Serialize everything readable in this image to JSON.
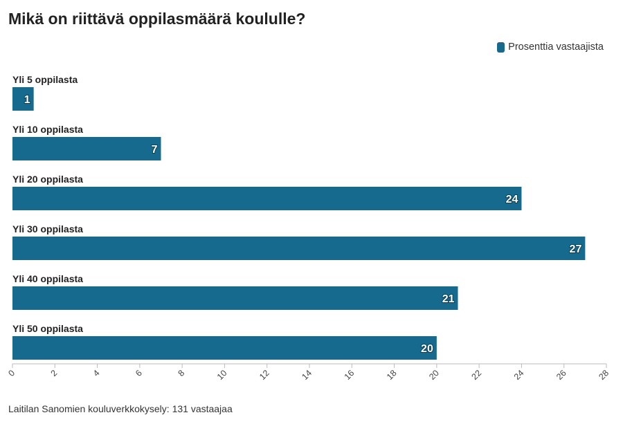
{
  "title": "Mikä on riittävä oppilasmäärä koululle?",
  "source": "Laitilan Sanomien kouluverkkokysely: 131 vastaajaa",
  "colors": {
    "bar": "#156a8e",
    "axis": "#bbbbbb",
    "text": "#222222"
  },
  "chart_data": {
    "type": "bar",
    "orientation": "horizontal",
    "categories": [
      "Yli 5 oppilasta",
      "Yli 10 oppilasta",
      "Yli 20 oppilasta",
      "Yli 30 oppilasta",
      "Yli 40 oppilasta",
      "Yli 50 oppilasta"
    ],
    "series": [
      {
        "name": "Prosenttia vastaajista",
        "values": [
          1,
          7,
          24,
          27,
          21,
          20
        ]
      }
    ],
    "xlim": [
      0,
      28
    ],
    "xticks": [
      0,
      2,
      4,
      6,
      8,
      10,
      12,
      14,
      16,
      18,
      20,
      22,
      24,
      26,
      28
    ],
    "grid": false,
    "legend": "top-right",
    "data_labels": true
  }
}
